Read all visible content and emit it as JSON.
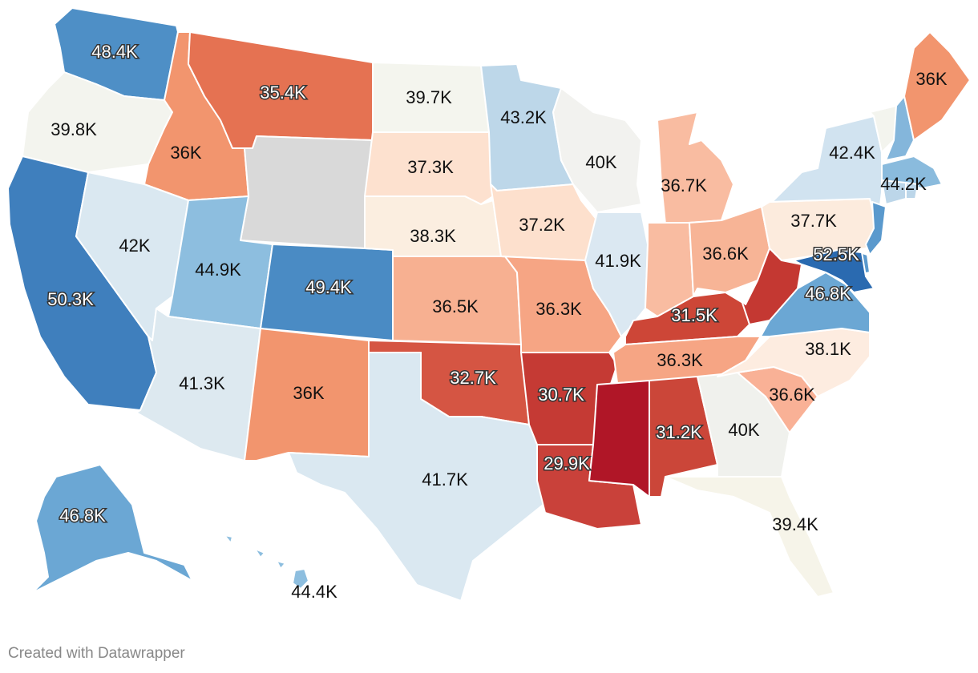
{
  "credit": "Created with Datawrapper",
  "states": [
    {
      "id": "WA",
      "label": "48.4K",
      "color": "#4e8fc6"
    },
    {
      "id": "OR",
      "label": "39.8K",
      "color": "#f3f4ee"
    },
    {
      "id": "CA",
      "label": "50.3K",
      "color": "#3f7fbd"
    },
    {
      "id": "ID",
      "label": "36K",
      "color": "#f2956e"
    },
    {
      "id": "NV",
      "label": "42K",
      "color": "#dae8f1"
    },
    {
      "id": "MT",
      "label": "35.4K",
      "color": "#e57252"
    },
    {
      "id": "WY",
      "label": "",
      "color": "#d9d9d9"
    },
    {
      "id": "UT",
      "label": "44.9K",
      "color": "#8dbedf"
    },
    {
      "id": "AZ",
      "label": "41.3K",
      "color": "#dde9f0"
    },
    {
      "id": "CO",
      "label": "49.4K",
      "color": "#4a8bc4"
    },
    {
      "id": "NM",
      "label": "36K",
      "color": "#f2956e"
    },
    {
      "id": "ND",
      "label": "39.7K",
      "color": "#f4f5ee"
    },
    {
      "id": "SD",
      "label": "37.3K",
      "color": "#fde1cf"
    },
    {
      "id": "NE",
      "label": "38.3K",
      "color": "#fbeee0"
    },
    {
      "id": "KS",
      "label": "36.5K",
      "color": "#f7b091"
    },
    {
      "id": "OK",
      "label": "32.7K",
      "color": "#d55543"
    },
    {
      "id": "TX",
      "label": "41.7K",
      "color": "#dae8f1"
    },
    {
      "id": "MN",
      "label": "43.2K",
      "color": "#bdd7e9"
    },
    {
      "id": "IA",
      "label": "37.2K",
      "color": "#fde0cd"
    },
    {
      "id": "MO",
      "label": "36.3K",
      "color": "#f6a584"
    },
    {
      "id": "AR",
      "label": "30.7K",
      "color": "#c53a34"
    },
    {
      "id": "LA",
      "label": "29.9K",
      "color": "#c9413a"
    },
    {
      "id": "WI",
      "label": "40K",
      "color": "#f2f2ef"
    },
    {
      "id": "IL",
      "label": "41.9K",
      "color": "#dbe8f2"
    },
    {
      "id": "MI",
      "label": "36.7K",
      "color": "#f9bca1"
    },
    {
      "id": "IN",
      "label": "",
      "color": "#f9bca1"
    },
    {
      "id": "OH",
      "label": "36.6K",
      "color": "#f7b496"
    },
    {
      "id": "KY",
      "label": "31.5K",
      "color": "#cd4637"
    },
    {
      "id": "TN",
      "label": "36.3K",
      "color": "#f6a584"
    },
    {
      "id": "MS",
      "label": "",
      "color": "#b01627"
    },
    {
      "id": "AL",
      "label": "31.2K",
      "color": "#cb4639"
    },
    {
      "id": "GA",
      "label": "40K",
      "color": "#f0f1ed"
    },
    {
      "id": "FL",
      "label": "39.4K",
      "color": "#f6f4e9"
    },
    {
      "id": "SC",
      "label": "36.6K",
      "color": "#f9b196"
    },
    {
      "id": "NC",
      "label": "38.1K",
      "color": "#fdece0"
    },
    {
      "id": "VA",
      "label": "46.8K",
      "color": "#6ba7d4"
    },
    {
      "id": "WV",
      "label": "",
      "color": "#c43832"
    },
    {
      "id": "PA",
      "label": "37.7K",
      "color": "#fcebdd"
    },
    {
      "id": "NY",
      "label": "42.4K",
      "color": "#d1e3f0"
    },
    {
      "id": "VT",
      "label": "",
      "color": "#f3f4ee"
    },
    {
      "id": "NH",
      "label": "",
      "color": "#84b6db"
    },
    {
      "id": "ME",
      "label": "36K",
      "color": "#f2956e"
    },
    {
      "id": "MA",
      "label": "44.2K",
      "color": "#8abbdd"
    },
    {
      "id": "CT",
      "label": "",
      "color": "#bcd6e9"
    },
    {
      "id": "RI",
      "label": "",
      "color": "#bcd6e9"
    },
    {
      "id": "NJ",
      "label": "",
      "color": "#5a99cd"
    },
    {
      "id": "DE",
      "label": "",
      "color": "#5a99cd"
    },
    {
      "id": "MD",
      "label": "52.5K",
      "color": "#2a6ab0"
    },
    {
      "id": "AK",
      "label": "46.8K",
      "color": "#6ba7d4"
    },
    {
      "id": "HI",
      "label": "44.4K",
      "color": "#8dbedf"
    }
  ]
}
